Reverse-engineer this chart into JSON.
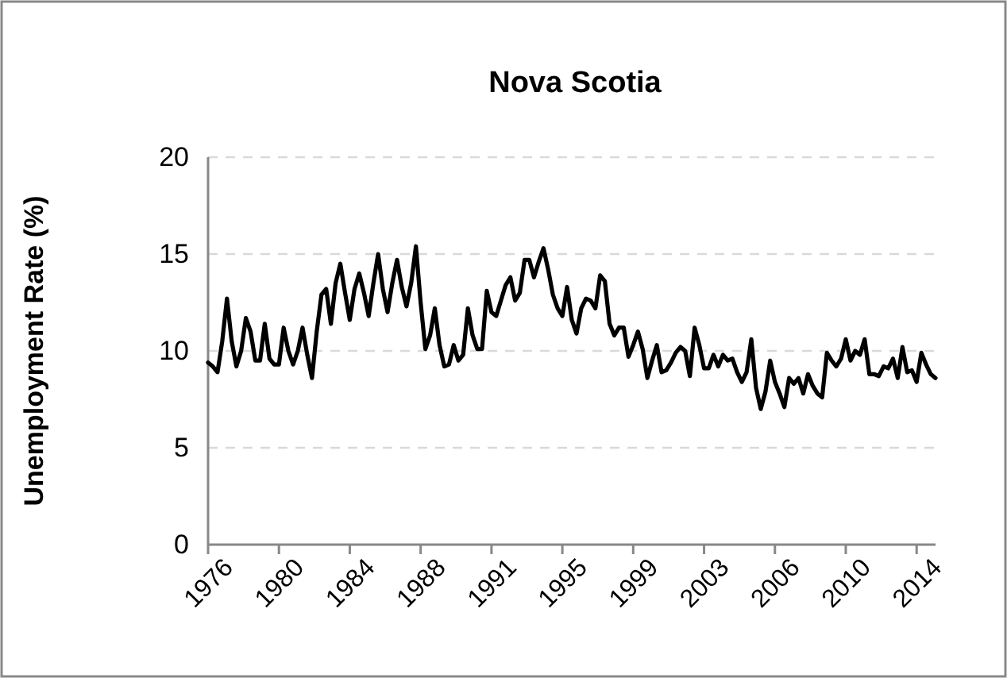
{
  "chart_data": {
    "type": "line",
    "title": "Nova Scotia",
    "ylabel": "Unemployment Rate (%)",
    "categories": [
      "1976",
      null,
      null,
      null,
      null,
      null,
      null,
      null,
      null,
      null,
      null,
      null,
      null,
      null,
      null,
      "1980",
      null,
      null,
      null,
      null,
      null,
      null,
      null,
      null,
      null,
      null,
      null,
      null,
      null,
      null,
      "1984",
      null,
      null,
      null,
      null,
      null,
      null,
      null,
      null,
      null,
      null,
      null,
      null,
      null,
      null,
      "1988",
      null,
      null,
      null,
      null,
      null,
      null,
      null,
      null,
      null,
      null,
      null,
      null,
      null,
      null,
      "1991",
      null,
      null,
      null,
      null,
      null,
      null,
      null,
      null,
      null,
      null,
      null,
      null,
      null,
      null,
      "1995",
      null,
      null,
      null,
      null,
      null,
      null,
      null,
      null,
      null,
      null,
      null,
      null,
      null,
      null,
      "1999",
      null,
      null,
      null,
      null,
      null,
      null,
      null,
      null,
      null,
      null,
      null,
      null,
      null,
      null,
      "2003",
      null,
      null,
      null,
      null,
      null,
      null,
      null,
      null,
      null,
      null,
      null,
      null,
      null,
      null,
      "2006",
      null,
      null,
      null,
      null,
      null,
      null,
      null,
      null,
      null,
      null,
      null,
      null,
      null,
      null,
      "2010",
      null,
      null,
      null,
      null,
      null,
      null,
      null,
      null,
      null,
      null,
      null,
      null,
      null,
      null,
      "2014",
      null,
      null,
      null,
      null
    ],
    "series": [
      {
        "color": "#000000",
        "values": [
          9.4,
          9.2,
          8.9,
          10.5,
          12.7,
          10.5,
          9.2,
          10,
          11.7,
          11,
          9.5,
          9.5,
          11.4,
          9.6,
          9.3,
          9.3,
          11.2,
          10,
          9.3,
          10,
          11.2,
          9.8,
          8.6,
          11,
          12.9,
          13.2,
          11.4,
          13.5,
          14.5,
          13,
          11.6,
          13.2,
          14,
          13,
          11.8,
          13.5,
          15,
          13.2,
          12,
          13.5,
          14.7,
          13.3,
          12.3,
          13.5,
          15.4,
          12.5,
          10.1,
          10.8,
          12.2,
          10.3,
          9.2,
          9.3,
          10.3,
          9.5,
          9.8,
          12.2,
          10.8,
          10.1,
          10.1,
          13.1,
          12,
          11.8,
          12.6,
          13.4,
          13.8,
          12.6,
          13,
          14.7,
          14.7,
          13.8,
          14.6,
          15.3,
          14.2,
          12.9,
          12.2,
          11.8,
          13.3,
          11.6,
          10.9,
          12.2,
          12.7,
          12.6,
          12.2,
          13.9,
          13.6,
          11.4,
          10.8,
          11.2,
          11.2,
          9.7,
          10.3,
          11,
          10.1,
          8.6,
          9.5,
          10.3,
          8.9,
          9,
          9.4,
          9.9,
          10.2,
          10,
          8.7,
          11.2,
          10.3,
          9.1,
          9.1,
          9.8,
          9.2,
          9.8,
          9.5,
          9.6,
          8.9,
          8.4,
          8.9,
          10.6,
          8.1,
          7,
          7.9,
          9.5,
          8.4,
          7.8,
          7.1,
          8.6,
          8.3,
          8.6,
          7.8,
          8.8,
          8.2,
          7.8,
          7.6,
          9.9,
          9.5,
          9.2,
          9.6,
          10.6,
          9.5,
          10,
          9.8,
          10.6,
          8.8,
          8.8,
          8.7,
          9.2,
          9.1,
          9.6,
          8.6,
          10.2,
          8.9,
          9,
          8.4,
          9.9,
          9.3,
          8.8,
          8.6
        ]
      }
    ],
    "ylim": [
      0,
      20
    ],
    "yticks": [
      0,
      5,
      10,
      15,
      20
    ],
    "grid": "y",
    "line_style": "solid",
    "marker": "none"
  }
}
